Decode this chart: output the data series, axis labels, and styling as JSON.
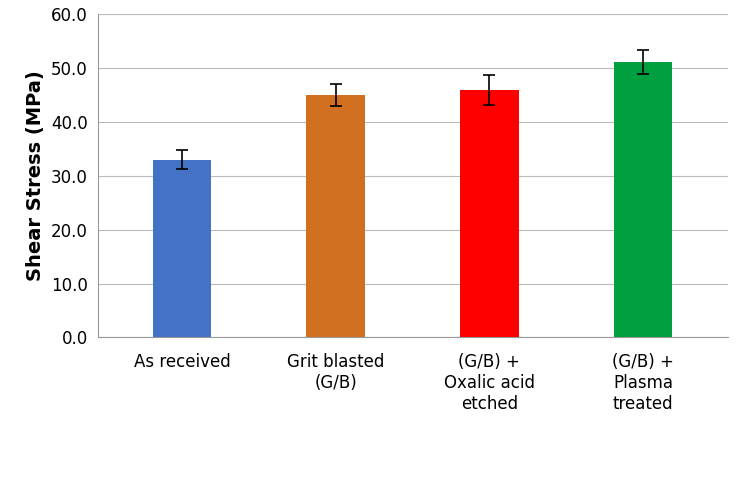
{
  "categories": [
    "As received",
    "Grit blasted\n(G/B)",
    "(G/B) +\nOxalic acid\netched",
    "(G/B) +\nPlasma\ntreated"
  ],
  "values": [
    33.0,
    45.0,
    46.0,
    51.2
  ],
  "errors": [
    1.8,
    2.0,
    2.8,
    2.2
  ],
  "bar_colors": [
    "#4472C4",
    "#D07020",
    "#FF0000",
    "#00A040"
  ],
  "ylabel": "Shear Stress (MPa)",
  "ylim": [
    0,
    60
  ],
  "yticks": [
    0.0,
    10.0,
    20.0,
    30.0,
    40.0,
    50.0,
    60.0
  ],
  "background_color": "#FFFFFF",
  "bar_width": 0.38,
  "grid_color": "#BBBBBB",
  "error_capsize": 4,
  "error_linewidth": 1.2,
  "ylabel_fontsize": 14,
  "tick_fontsize": 12,
  "xtick_fontsize": 12
}
